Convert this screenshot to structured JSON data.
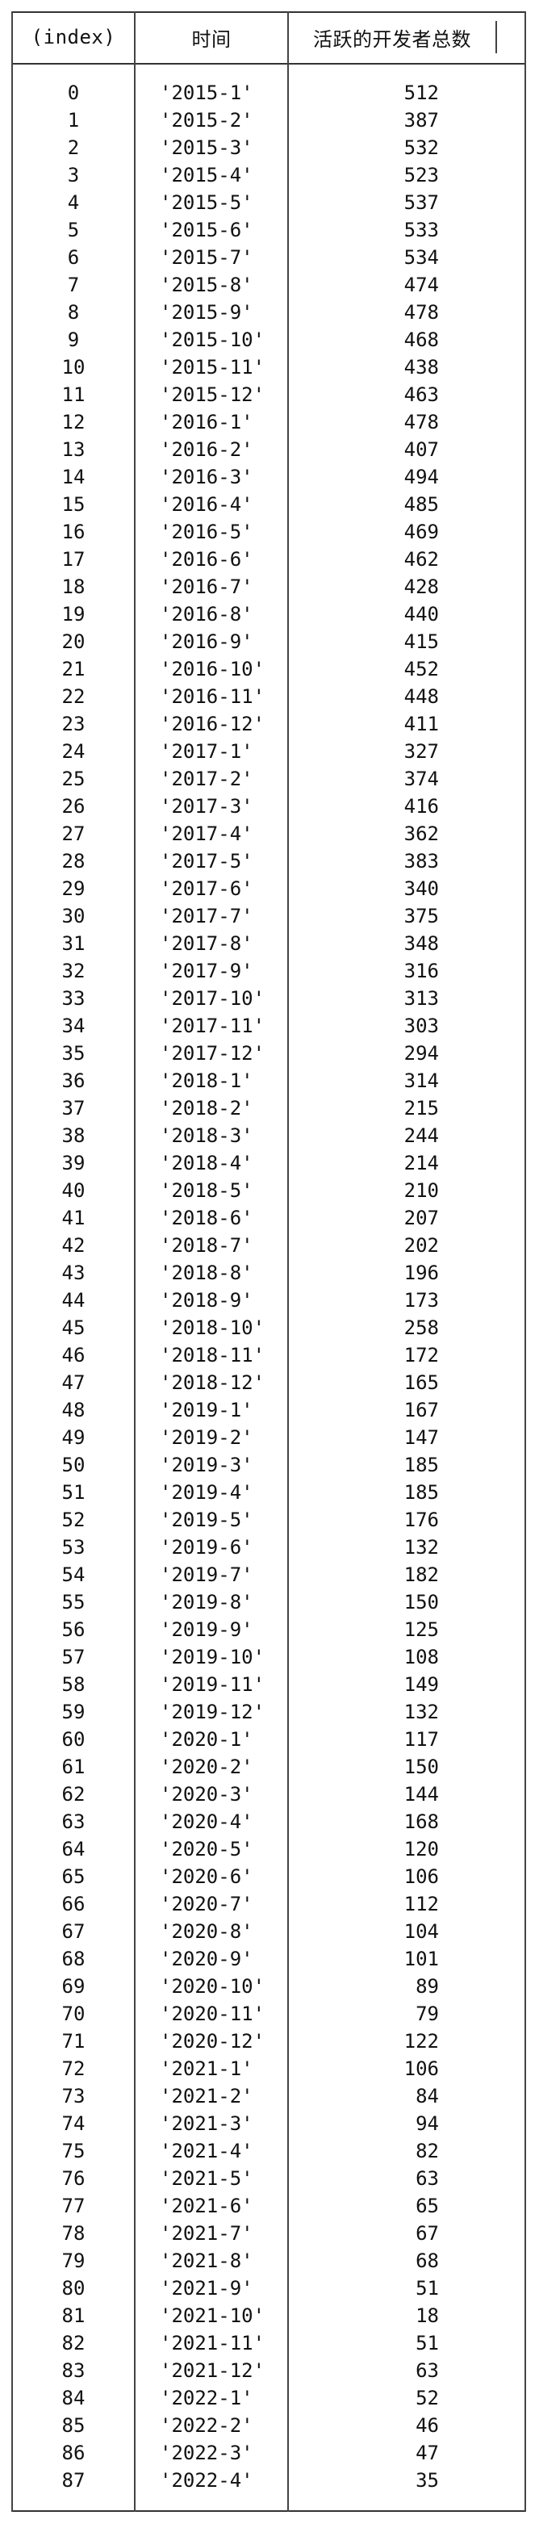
{
  "table": {
    "headers": {
      "index": "(index)",
      "time": "时间",
      "count": "活跃的开发者总数"
    },
    "rows": [
      {
        "index": "0",
        "time": "'2015-1'",
        "count": "512"
      },
      {
        "index": "1",
        "time": "'2015-2'",
        "count": "387"
      },
      {
        "index": "2",
        "time": "'2015-3'",
        "count": "532"
      },
      {
        "index": "3",
        "time": "'2015-4'",
        "count": "523"
      },
      {
        "index": "4",
        "time": "'2015-5'",
        "count": "537"
      },
      {
        "index": "5",
        "time": "'2015-6'",
        "count": "533"
      },
      {
        "index": "6",
        "time": "'2015-7'",
        "count": "534"
      },
      {
        "index": "7",
        "time": "'2015-8'",
        "count": "474"
      },
      {
        "index": "8",
        "time": "'2015-9'",
        "count": "478"
      },
      {
        "index": "9",
        "time": "'2015-10'",
        "count": "468"
      },
      {
        "index": "10",
        "time": "'2015-11'",
        "count": "438"
      },
      {
        "index": "11",
        "time": "'2015-12'",
        "count": "463"
      },
      {
        "index": "12",
        "time": "'2016-1'",
        "count": "478"
      },
      {
        "index": "13",
        "time": "'2016-2'",
        "count": "407"
      },
      {
        "index": "14",
        "time": "'2016-3'",
        "count": "494"
      },
      {
        "index": "15",
        "time": "'2016-4'",
        "count": "485"
      },
      {
        "index": "16",
        "time": "'2016-5'",
        "count": "469"
      },
      {
        "index": "17",
        "time": "'2016-6'",
        "count": "462"
      },
      {
        "index": "18",
        "time": "'2016-7'",
        "count": "428"
      },
      {
        "index": "19",
        "time": "'2016-8'",
        "count": "440"
      },
      {
        "index": "20",
        "time": "'2016-9'",
        "count": "415"
      },
      {
        "index": "21",
        "time": "'2016-10'",
        "count": "452"
      },
      {
        "index": "22",
        "time": "'2016-11'",
        "count": "448"
      },
      {
        "index": "23",
        "time": "'2016-12'",
        "count": "411"
      },
      {
        "index": "24",
        "time": "'2017-1'",
        "count": "327"
      },
      {
        "index": "25",
        "time": "'2017-2'",
        "count": "374"
      },
      {
        "index": "26",
        "time": "'2017-3'",
        "count": "416"
      },
      {
        "index": "27",
        "time": "'2017-4'",
        "count": "362"
      },
      {
        "index": "28",
        "time": "'2017-5'",
        "count": "383"
      },
      {
        "index": "29",
        "time": "'2017-6'",
        "count": "340"
      },
      {
        "index": "30",
        "time": "'2017-7'",
        "count": "375"
      },
      {
        "index": "31",
        "time": "'2017-8'",
        "count": "348"
      },
      {
        "index": "32",
        "time": "'2017-9'",
        "count": "316"
      },
      {
        "index": "33",
        "time": "'2017-10'",
        "count": "313"
      },
      {
        "index": "34",
        "time": "'2017-11'",
        "count": "303"
      },
      {
        "index": "35",
        "time": "'2017-12'",
        "count": "294"
      },
      {
        "index": "36",
        "time": "'2018-1'",
        "count": "314"
      },
      {
        "index": "37",
        "time": "'2018-2'",
        "count": "215"
      },
      {
        "index": "38",
        "time": "'2018-3'",
        "count": "244"
      },
      {
        "index": "39",
        "time": "'2018-4'",
        "count": "214"
      },
      {
        "index": "40",
        "time": "'2018-5'",
        "count": "210"
      },
      {
        "index": "41",
        "time": "'2018-6'",
        "count": "207"
      },
      {
        "index": "42",
        "time": "'2018-7'",
        "count": "202"
      },
      {
        "index": "43",
        "time": "'2018-8'",
        "count": "196"
      },
      {
        "index": "44",
        "time": "'2018-9'",
        "count": "173"
      },
      {
        "index": "45",
        "time": "'2018-10'",
        "count": "258"
      },
      {
        "index": "46",
        "time": "'2018-11'",
        "count": "172"
      },
      {
        "index": "47",
        "time": "'2018-12'",
        "count": "165"
      },
      {
        "index": "48",
        "time": "'2019-1'",
        "count": "167"
      },
      {
        "index": "49",
        "time": "'2019-2'",
        "count": "147"
      },
      {
        "index": "50",
        "time": "'2019-3'",
        "count": "185"
      },
      {
        "index": "51",
        "time": "'2019-4'",
        "count": "185"
      },
      {
        "index": "52",
        "time": "'2019-5'",
        "count": "176"
      },
      {
        "index": "53",
        "time": "'2019-6'",
        "count": "132"
      },
      {
        "index": "54",
        "time": "'2019-7'",
        "count": "182"
      },
      {
        "index": "55",
        "time": "'2019-8'",
        "count": "150"
      },
      {
        "index": "56",
        "time": "'2019-9'",
        "count": "125"
      },
      {
        "index": "57",
        "time": "'2019-10'",
        "count": "108"
      },
      {
        "index": "58",
        "time": "'2019-11'",
        "count": "149"
      },
      {
        "index": "59",
        "time": "'2019-12'",
        "count": "132"
      },
      {
        "index": "60",
        "time": "'2020-1'",
        "count": "117"
      },
      {
        "index": "61",
        "time": "'2020-2'",
        "count": "150"
      },
      {
        "index": "62",
        "time": "'2020-3'",
        "count": "144"
      },
      {
        "index": "63",
        "time": "'2020-4'",
        "count": "168"
      },
      {
        "index": "64",
        "time": "'2020-5'",
        "count": "120"
      },
      {
        "index": "65",
        "time": "'2020-6'",
        "count": "106"
      },
      {
        "index": "66",
        "time": "'2020-7'",
        "count": "112"
      },
      {
        "index": "67",
        "time": "'2020-8'",
        "count": "104"
      },
      {
        "index": "68",
        "time": "'2020-9'",
        "count": "101"
      },
      {
        "index": "69",
        "time": "'2020-10'",
        "count": "89"
      },
      {
        "index": "70",
        "time": "'2020-11'",
        "count": "79"
      },
      {
        "index": "71",
        "time": "'2020-12'",
        "count": "122"
      },
      {
        "index": "72",
        "time": "'2021-1'",
        "count": "106"
      },
      {
        "index": "73",
        "time": "'2021-2'",
        "count": "84"
      },
      {
        "index": "74",
        "time": "'2021-3'",
        "count": "94"
      },
      {
        "index": "75",
        "time": "'2021-4'",
        "count": "82"
      },
      {
        "index": "76",
        "time": "'2021-5'",
        "count": "63"
      },
      {
        "index": "77",
        "time": "'2021-6'",
        "count": "65"
      },
      {
        "index": "78",
        "time": "'2021-7'",
        "count": "67"
      },
      {
        "index": "79",
        "time": "'2021-8'",
        "count": "68"
      },
      {
        "index": "80",
        "time": "'2021-9'",
        "count": "51"
      },
      {
        "index": "81",
        "time": "'2021-10'",
        "count": "18"
      },
      {
        "index": "82",
        "time": "'2021-11'",
        "count": "51"
      },
      {
        "index": "83",
        "time": "'2021-12'",
        "count": "63"
      },
      {
        "index": "84",
        "time": "'2022-1'",
        "count": "52"
      },
      {
        "index": "85",
        "time": "'2022-2'",
        "count": "46"
      },
      {
        "index": "86",
        "time": "'2022-3'",
        "count": "47"
      },
      {
        "index": "87",
        "time": "'2022-4'",
        "count": "35"
      }
    ]
  }
}
